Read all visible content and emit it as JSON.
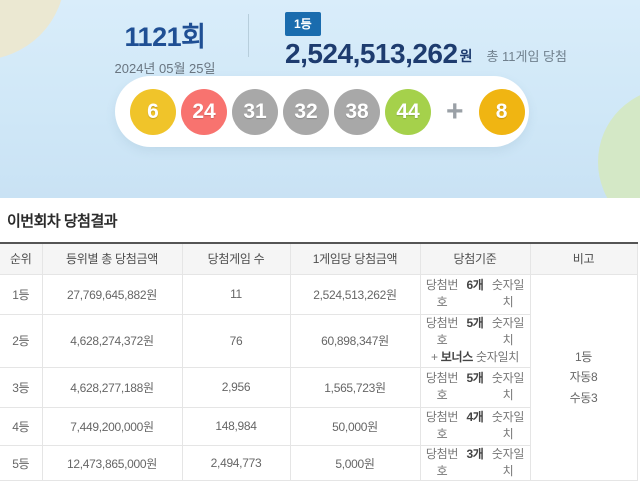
{
  "header": {
    "round": "1121회",
    "date": "2024년 05월 25일",
    "rank_badge": "1등",
    "prize_amount": "2,524,513,262",
    "prize_currency": "원",
    "games_won": "총 11게임 당첨"
  },
  "balls": {
    "main": [
      {
        "number": "6",
        "color": "#f0c42a"
      },
      {
        "number": "24",
        "color": "#f8736f"
      },
      {
        "number": "31",
        "color": "#a8a8a8"
      },
      {
        "number": "32",
        "color": "#a8a8a8"
      },
      {
        "number": "38",
        "color": "#a8a8a8"
      },
      {
        "number": "44",
        "color": "#a5d14b"
      }
    ],
    "plus": "+",
    "bonus": {
      "number": "8",
      "color": "#f0b512"
    }
  },
  "results": {
    "title": "이번회차 당첨결과",
    "columns": [
      "순위",
      "등위별 총 당첨금액",
      "당첨게임 수",
      "1게임당 당첨금액",
      "당첨기준",
      "비고"
    ],
    "rows": [
      {
        "rank": "1등",
        "total": "27,769,645,882원",
        "games": "11",
        "per_game": "2,524,513,262원",
        "criteria": {
          "pre": "당첨번호",
          "bold": "6개",
          "post": "숫자일치"
        }
      },
      {
        "rank": "2등",
        "total": "4,628,274,372원",
        "games": "76",
        "per_game": "60,898,347원",
        "criteria": {
          "pre": "당첨번호",
          "bold": "5개",
          "post": "숫자일치"
        },
        "criteria2": {
          "pre": "+",
          "bold": "보너스",
          "post": "숫자일치"
        }
      },
      {
        "rank": "3등",
        "total": "4,628,277,188원",
        "games": "2,956",
        "per_game": "1,565,723원",
        "criteria": {
          "pre": "당첨번호",
          "bold": "5개",
          "post": "숫자일치"
        }
      },
      {
        "rank": "4등",
        "total": "7,449,200,000원",
        "games": "148,984",
        "per_game": "50,000원",
        "criteria": {
          "pre": "당첨번호",
          "bold": "4개",
          "post": "숫자일치"
        }
      },
      {
        "rank": "5등",
        "total": "12,473,865,000원",
        "games": "2,494,773",
        "per_game": "5,000원",
        "criteria": {
          "pre": "당첨번호",
          "bold": "3개",
          "post": "숫자일치"
        }
      }
    ],
    "remark": {
      "line1": "1등",
      "line2": "자동8",
      "line3": "수동3"
    }
  },
  "colors": {
    "badge_bg": "#1a6cae",
    "round_text": "#1f4f94",
    "amount_text": "#1e3c6f",
    "hero_bg": "#cfe7f7"
  }
}
